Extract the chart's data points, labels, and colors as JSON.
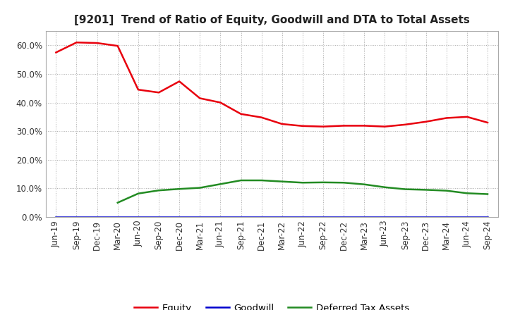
{
  "title": "[9201]  Trend of Ratio of Equity, Goodwill and DTA to Total Assets",
  "x_labels": [
    "Jun-19",
    "Sep-19",
    "Dec-19",
    "Mar-20",
    "Jun-20",
    "Sep-20",
    "Dec-20",
    "Mar-21",
    "Jun-21",
    "Sep-21",
    "Dec-21",
    "Mar-22",
    "Jun-22",
    "Sep-22",
    "Dec-22",
    "Mar-23",
    "Jun-23",
    "Sep-23",
    "Dec-23",
    "Mar-24",
    "Jun-24",
    "Sep-24"
  ],
  "equity": [
    0.575,
    0.61,
    0.608,
    0.598,
    0.445,
    0.435,
    0.474,
    0.415,
    0.4,
    0.36,
    0.348,
    0.325,
    0.318,
    0.316,
    0.319,
    0.319,
    0.316,
    0.323,
    0.333,
    0.346,
    0.35,
    0.33
  ],
  "goodwill": [
    0.0,
    0.0,
    0.0,
    0.0,
    0.0,
    0.0,
    0.0,
    0.0,
    0.0,
    0.0,
    0.0,
    0.0,
    0.0,
    0.0,
    0.0,
    0.0,
    0.0,
    0.0,
    0.0,
    0.0,
    0.0,
    0.0
  ],
  "dta": [
    null,
    null,
    null,
    0.05,
    0.082,
    0.093,
    0.098,
    0.102,
    0.115,
    0.128,
    0.128,
    0.124,
    0.12,
    0.121,
    0.12,
    0.114,
    0.104,
    0.097,
    0.095,
    0.092,
    0.083,
    0.08
  ],
  "equity_color": "#e8000d",
  "goodwill_color": "#0000cd",
  "dta_color": "#228b22",
  "bg_color": "#ffffff",
  "plot_bg_color": "#ffffff",
  "ylim": [
    0.0,
    0.65
  ],
  "yticks": [
    0.0,
    0.1,
    0.2,
    0.3,
    0.4,
    0.5,
    0.6
  ],
  "grid_color": "#aaaaaa",
  "legend_labels": [
    "Equity",
    "Goodwill",
    "Deferred Tax Assets"
  ],
  "title_fontsize": 11,
  "tick_fontsize": 8.5,
  "legend_fontsize": 9.5
}
